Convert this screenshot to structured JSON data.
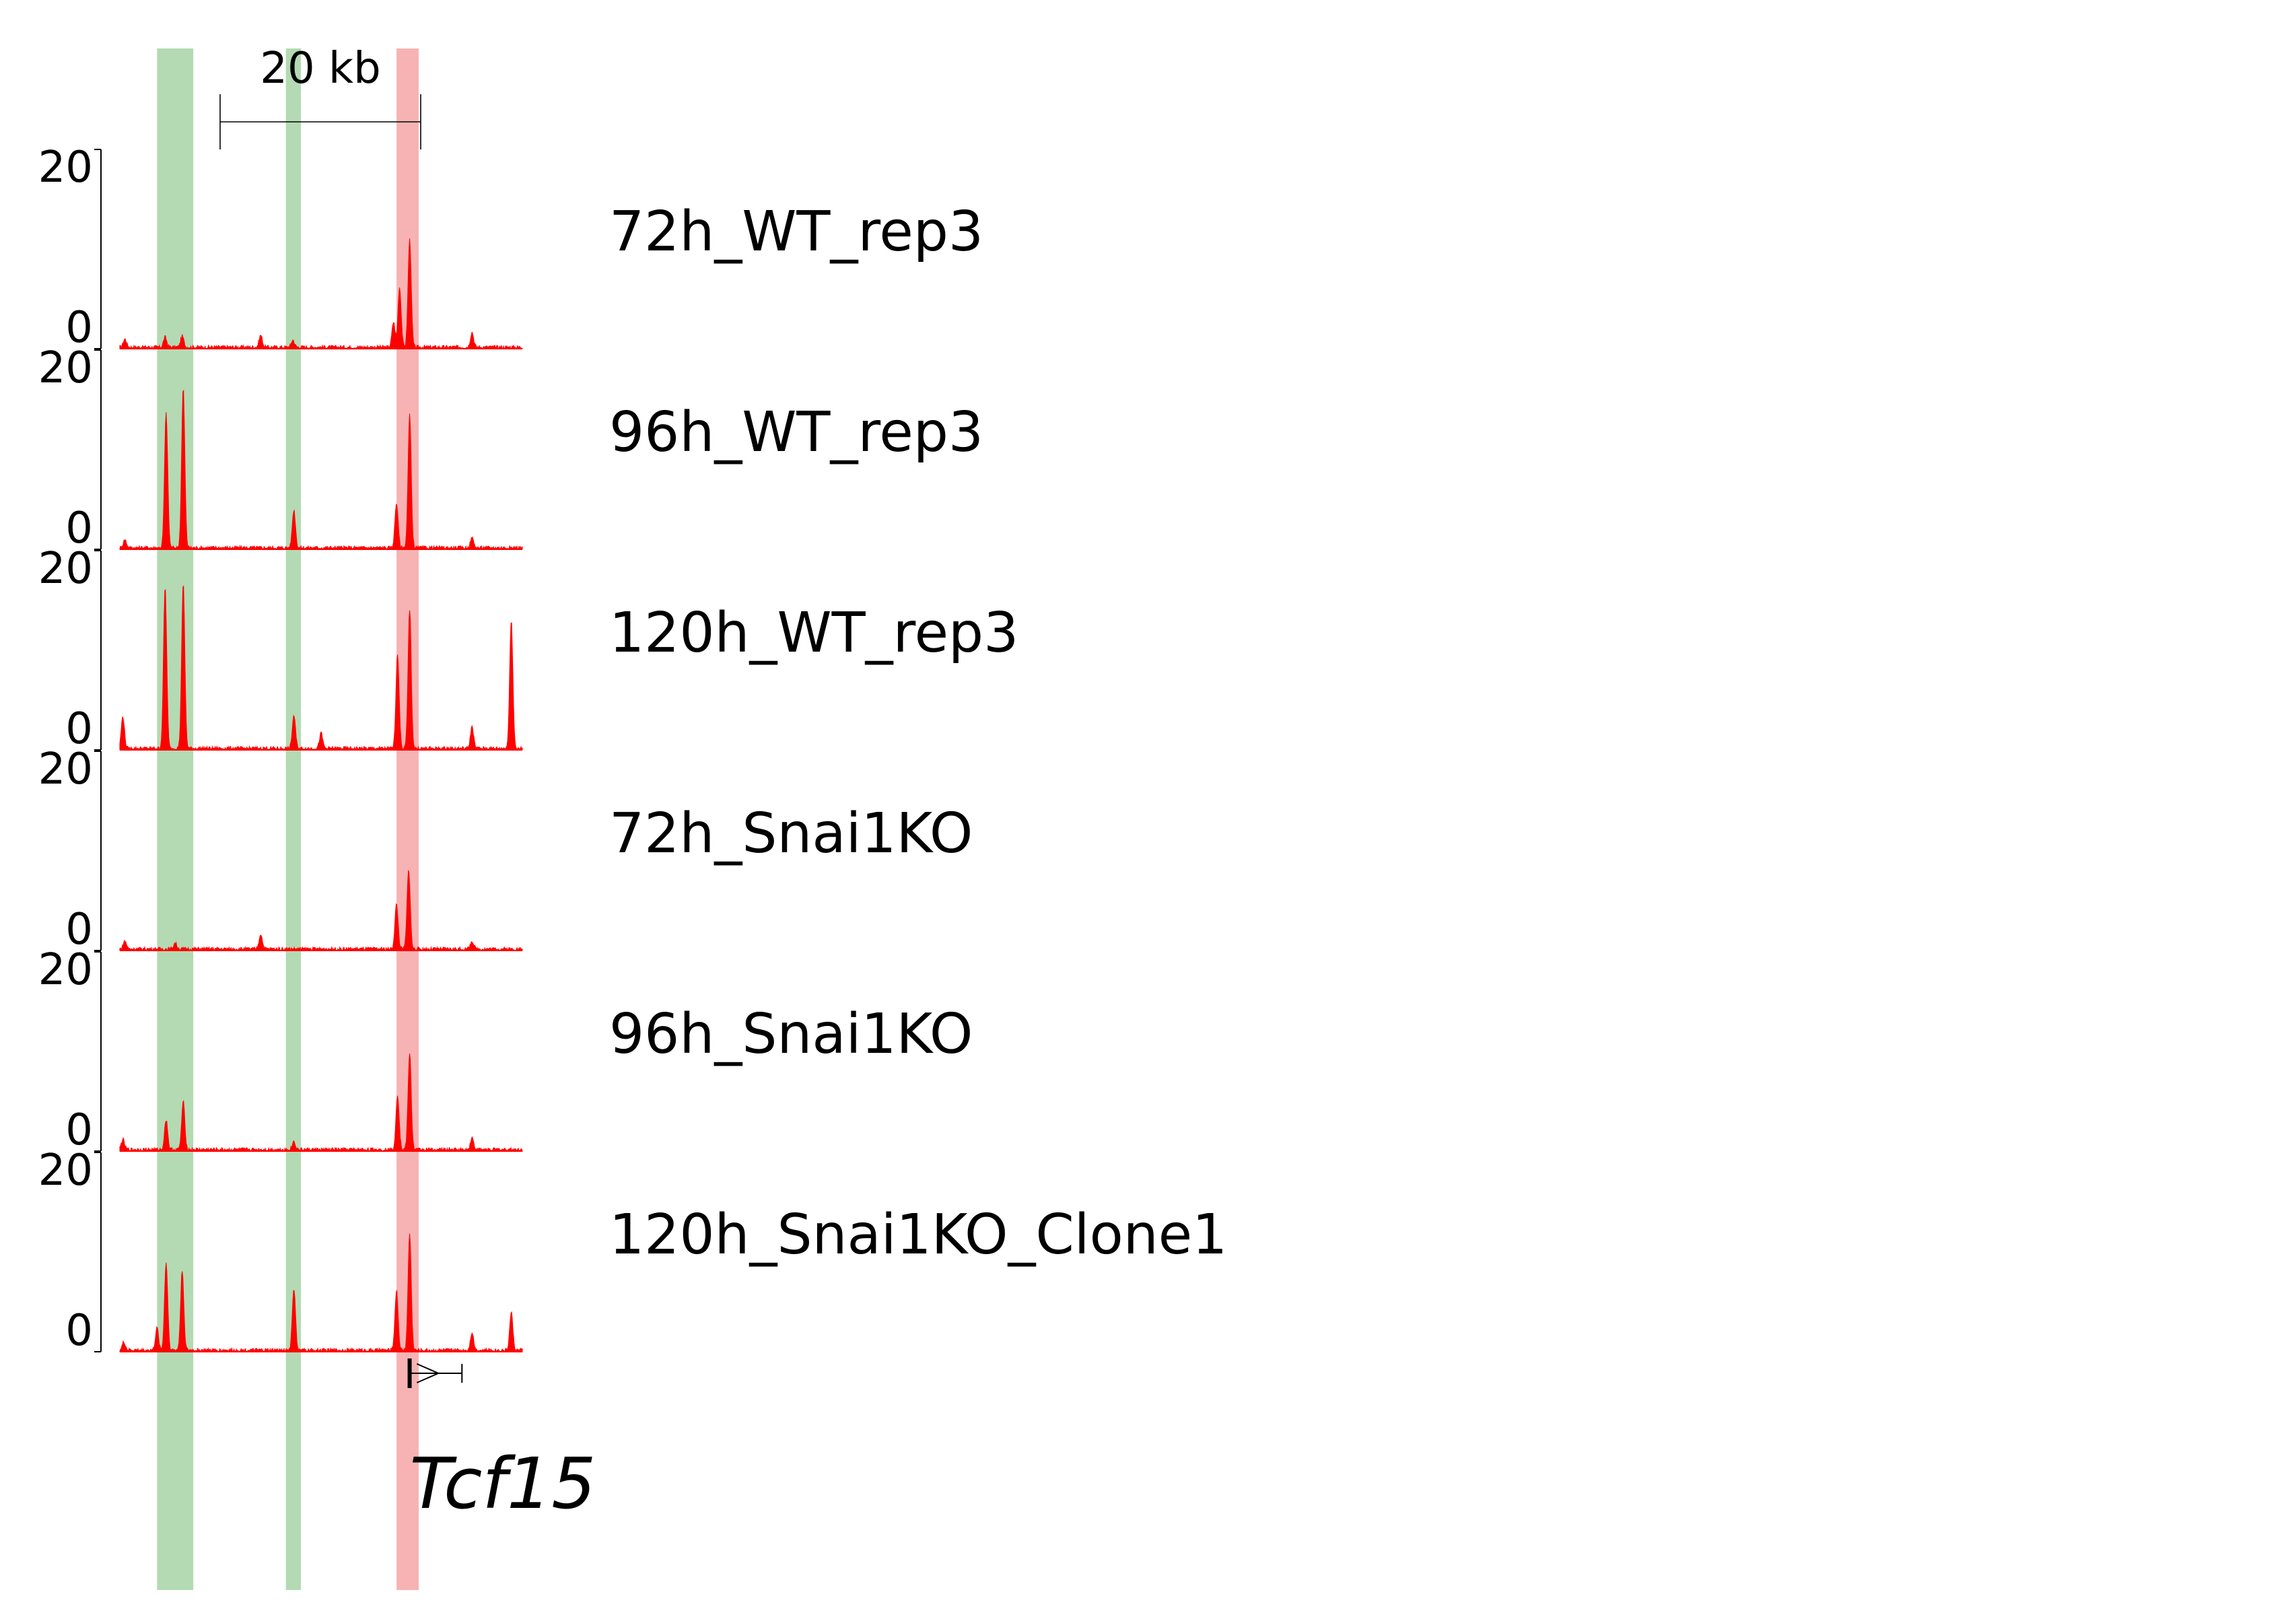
{
  "chart_data": {
    "type": "area",
    "title": "",
    "scale_bar": {
      "label": "20 kb"
    },
    "y_axis": {
      "min_label": "0",
      "max_label": "20",
      "ylim": [
        0,
        20
      ]
    },
    "x_range_kb": [
      0,
      40
    ],
    "signal_color": "#ff0000",
    "highlights": [
      {
        "start_kb": 3.7,
        "end_kb": 7.3,
        "color": "#b3dab3"
      },
      {
        "start_kb": 16.5,
        "end_kb": 18.0,
        "color": "#b3dab3"
      },
      {
        "start_kb": 27.5,
        "end_kb": 29.7,
        "color": "#f7b3b3"
      }
    ],
    "series": [
      {
        "name": "72h_WT_rep3",
        "peaks": [
          {
            "x_kb": 0.5,
            "y": 0.8
          },
          {
            "x_kb": 4.5,
            "y": 1.0
          },
          {
            "x_kb": 6.2,
            "y": 1.1
          },
          {
            "x_kb": 14.0,
            "y": 1.2
          },
          {
            "x_kb": 17.2,
            "y": 0.7
          },
          {
            "x_kb": 27.2,
            "y": 2.5
          },
          {
            "x_kb": 27.8,
            "y": 6.0
          },
          {
            "x_kb": 28.8,
            "y": 10.8
          },
          {
            "x_kb": 35.0,
            "y": 1.5
          }
        ]
      },
      {
        "name": "96h_WT_rep3",
        "peaks": [
          {
            "x_kb": 0.5,
            "y": 0.8
          },
          {
            "x_kb": 4.6,
            "y": 13.5
          },
          {
            "x_kb": 6.3,
            "y": 16.0
          },
          {
            "x_kb": 17.3,
            "y": 3.8
          },
          {
            "x_kb": 27.5,
            "y": 4.5
          },
          {
            "x_kb": 28.8,
            "y": 13.3
          },
          {
            "x_kb": 35.0,
            "y": 1.0
          }
        ]
      },
      {
        "name": "120h_WT_rep3",
        "peaks": [
          {
            "x_kb": 0.3,
            "y": 3.2
          },
          {
            "x_kb": 4.5,
            "y": 16.2
          },
          {
            "x_kb": 6.3,
            "y": 16.5
          },
          {
            "x_kb": 17.3,
            "y": 3.3
          },
          {
            "x_kb": 20.0,
            "y": 1.5
          },
          {
            "x_kb": 27.6,
            "y": 9.5
          },
          {
            "x_kb": 28.8,
            "y": 14.0
          },
          {
            "x_kb": 35.0,
            "y": 2.2
          },
          {
            "x_kb": 38.9,
            "y": 13.0
          }
        ]
      },
      {
        "name": "72h_Snai1KO",
        "peaks": [
          {
            "x_kb": 0.5,
            "y": 0.8
          },
          {
            "x_kb": 5.5,
            "y": 0.6
          },
          {
            "x_kb": 14.0,
            "y": 1.5
          },
          {
            "x_kb": 27.5,
            "y": 4.5
          },
          {
            "x_kb": 28.7,
            "y": 8.0
          },
          {
            "x_kb": 35.0,
            "y": 0.8
          }
        ]
      },
      {
        "name": "96h_Snai1KO",
        "peaks": [
          {
            "x_kb": 0.3,
            "y": 1.0
          },
          {
            "x_kb": 4.6,
            "y": 3.0
          },
          {
            "x_kb": 6.3,
            "y": 4.8
          },
          {
            "x_kb": 17.3,
            "y": 0.8
          },
          {
            "x_kb": 27.6,
            "y": 5.5
          },
          {
            "x_kb": 28.8,
            "y": 9.7
          },
          {
            "x_kb": 35.0,
            "y": 1.2
          }
        ]
      },
      {
        "name": "120h_Snai1KO_Clone1",
        "peaks": [
          {
            "x_kb": 0.4,
            "y": 0.8
          },
          {
            "x_kb": 3.7,
            "y": 2.2
          },
          {
            "x_kb": 4.6,
            "y": 8.8
          },
          {
            "x_kb": 6.2,
            "y": 8.0
          },
          {
            "x_kb": 17.3,
            "y": 6.2
          },
          {
            "x_kb": 27.5,
            "y": 6.0
          },
          {
            "x_kb": 28.8,
            "y": 11.7
          },
          {
            "x_kb": 35.0,
            "y": 1.8
          },
          {
            "x_kb": 38.9,
            "y": 3.8
          }
        ]
      }
    ],
    "gene": {
      "name": "Tcf15",
      "start_kb": 28.8,
      "end_kb": 34.0,
      "strand": "+"
    },
    "grid": false,
    "legend": "none"
  }
}
